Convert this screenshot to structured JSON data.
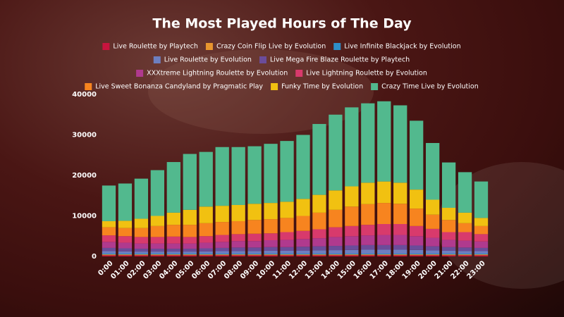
{
  "chart_data": {
    "type": "stacked-bar",
    "title": "The Most Played Hours of The Day",
    "categories": [
      "0:00",
      "01:00",
      "02:00",
      "03:00",
      "04:00",
      "05:00",
      "06:00",
      "07:00",
      "08:00",
      "09:00",
      "10:00",
      "11:00",
      "12:00",
      "13:00",
      "14:00",
      "15:00",
      "16:00",
      "17:00",
      "18:00",
      "19:00",
      "20:00",
      "21:00",
      "22:00",
      "23:00"
    ],
    "ylim": [
      0,
      40000
    ],
    "yticks": [
      0,
      10000,
      20000,
      30000,
      40000
    ],
    "grid": false,
    "series": [
      {
        "name": "Live Roulette by Playtech",
        "color": "#c8143e",
        "values": [
          300,
          300,
          300,
          300,
          300,
          300,
          300,
          300,
          300,
          300,
          300,
          300,
          300,
          300,
          300,
          300,
          300,
          300,
          300,
          300,
          300,
          300,
          300,
          300
        ]
      },
      {
        "name": "Crazy Coin Flip Live by Evolution",
        "color": "#e8952e",
        "values": [
          200,
          200,
          200,
          200,
          200,
          200,
          200,
          200,
          200,
          200,
          200,
          200,
          200,
          200,
          200,
          200,
          200,
          200,
          200,
          200,
          200,
          200,
          200,
          200
        ]
      },
      {
        "name": "Live Infinite Blackjack by Evolution",
        "color": "#2e8fc9",
        "values": [
          200,
          200,
          200,
          200,
          200,
          200,
          200,
          200,
          200,
          200,
          200,
          200,
          200,
          200,
          200,
          200,
          200,
          200,
          200,
          200,
          200,
          200,
          200,
          200
        ]
      },
      {
        "name": "Live Roulette by Evolution",
        "color": "#6d7fc0",
        "values": [
          600,
          550,
          500,
          500,
          500,
          500,
          550,
          600,
          650,
          650,
          700,
          700,
          750,
          800,
          850,
          900,
          950,
          950,
          950,
          900,
          800,
          700,
          650,
          600
        ]
      },
      {
        "name": "Live Mega Fire Blaze Roulette by Playtech",
        "color": "#6b4c9a",
        "values": [
          800,
          750,
          700,
          700,
          700,
          700,
          750,
          800,
          850,
          850,
          900,
          900,
          950,
          1000,
          1050,
          1100,
          1150,
          1150,
          1150,
          1100,
          1000,
          900,
          850,
          800
        ]
      },
      {
        "name": "XXXtreme Lightning Roulette by Evolution",
        "color": "#b03a8e",
        "values": [
          1500,
          1400,
          1300,
          1300,
          1300,
          1300,
          1400,
          1500,
          1600,
          1600,
          1700,
          1800,
          1900,
          2000,
          2200,
          2300,
          2400,
          2500,
          2500,
          2300,
          2100,
          1800,
          1700,
          1600
        ]
      },
      {
        "name": "Live Lightning Roulette by Evolution",
        "color": "#d83a6c",
        "values": [
          1600,
          1600,
          1600,
          1600,
          1700,
          1600,
          1600,
          1700,
          1700,
          1800,
          1700,
          1900,
          2000,
          2200,
          2400,
          2500,
          2600,
          2700,
          2700,
          2500,
          2200,
          1900,
          2100,
          1800
        ]
      },
      {
        "name": "Live Sweet Bonanza Candyland by Pragmatic Play",
        "color": "#f7841f",
        "values": [
          2000,
          2000,
          2200,
          2700,
          2900,
          3000,
          3200,
          3200,
          3200,
          3400,
          3500,
          3500,
          3700,
          4100,
          4300,
          4800,
          5100,
          5200,
          5000,
          4300,
          3500,
          3000,
          2200,
          2000
        ]
      },
      {
        "name": "Funky Time by Evolution",
        "color": "#f1c111",
        "values": [
          1500,
          1800,
          2300,
          2500,
          3000,
          3700,
          4100,
          4000,
          4000,
          4000,
          4000,
          4000,
          4200,
          4400,
          4800,
          5000,
          5300,
          5300,
          5200,
          4700,
          3700,
          3000,
          2600,
          2000
        ]
      },
      {
        "name": "Crazy Time Live by Evolution",
        "color": "#52b98e",
        "values": [
          8800,
          9200,
          9900,
          11300,
          12500,
          13800,
          13500,
          14500,
          14300,
          14200,
          14600,
          15000,
          15800,
          17500,
          18700,
          19500,
          19600,
          19800,
          19100,
          17000,
          14000,
          11200,
          10000,
          9000
        ]
      }
    ]
  }
}
